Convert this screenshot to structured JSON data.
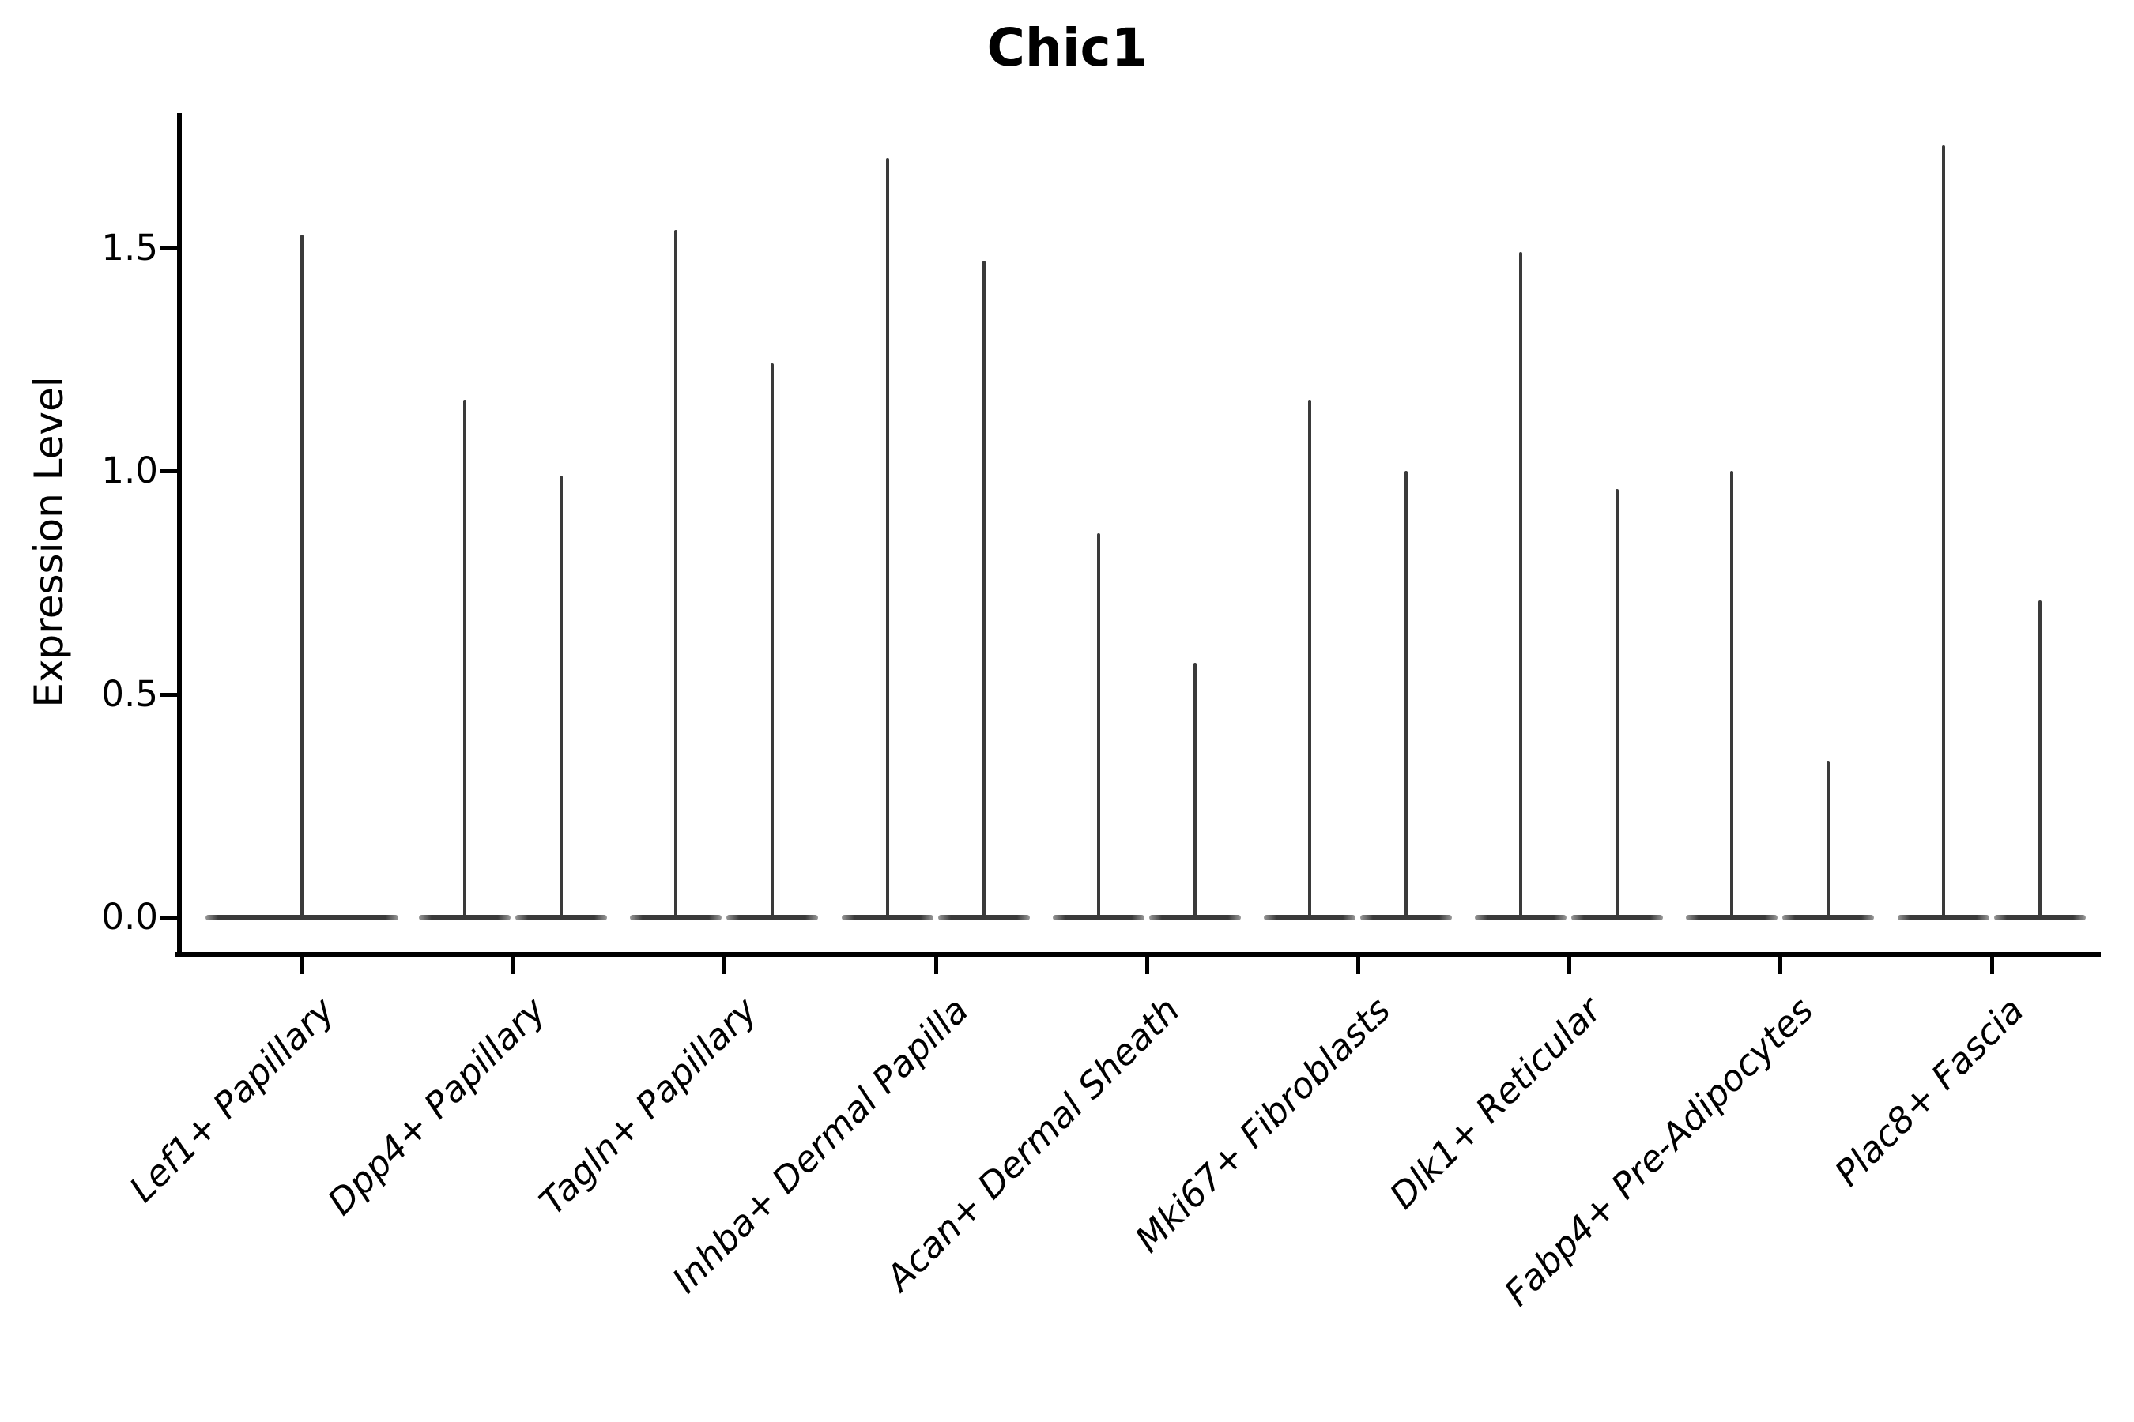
{
  "chart_data": {
    "type": "violin",
    "title": "Chic1",
    "ylabel": "Expression Level",
    "xlabel": "",
    "ylim": [
      -0.08,
      1.8
    ],
    "yticks": [
      "0.0",
      "0.5",
      "1.0",
      "1.5"
    ],
    "ytick_values": [
      0.0,
      0.5,
      1.0,
      1.5
    ],
    "grid": false,
    "legend": "none",
    "violin_color": "#3a3a3a",
    "note": "Sparse single-cell expression: each violin collapses to a flat base at 0 with a hair-thin spike up to the maximum expression value. Lef1+ Papillary shows a single centered violin; every other category shows two dodged violins.",
    "groups": [
      {
        "category": "Lef1+ Papillary",
        "spike_maxima": [
          1.53
        ]
      },
      {
        "category": "Dpp4+ Papillary",
        "spike_maxima": [
          1.16,
          0.99
        ]
      },
      {
        "category": "Tagln+ Papillary",
        "spike_maxima": [
          1.54,
          1.24
        ]
      },
      {
        "category": "Inhba+ Dermal Papilla",
        "spike_maxima": [
          1.7,
          1.47
        ]
      },
      {
        "category": "Acan+ Dermal Sheath",
        "spike_maxima": [
          0.86,
          0.57
        ]
      },
      {
        "category": "Mki67+ Fibroblasts",
        "spike_maxima": [
          1.16,
          1.0
        ]
      },
      {
        "category": "Dlk1+ Reticular",
        "spike_maxima": [
          1.49,
          0.96
        ]
      },
      {
        "category": "Fabp4+ Pre-Adipocytes",
        "spike_maxima": [
          1.0,
          0.35
        ]
      },
      {
        "category": "Plac8+ Fascia",
        "spike_maxima": [
          1.73,
          0.71
        ]
      }
    ]
  }
}
